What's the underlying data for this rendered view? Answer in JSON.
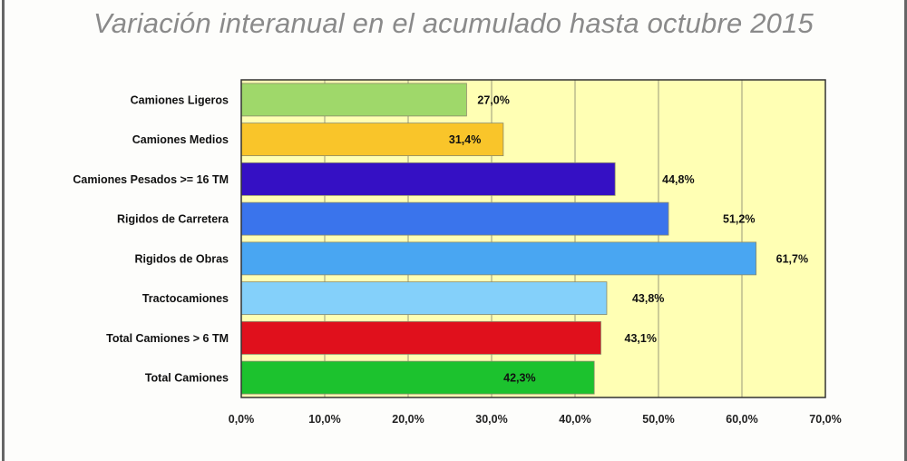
{
  "chart_data": {
    "type": "bar",
    "orientation": "horizontal",
    "title": "Variación interanual en el acumulado hasta octubre 2015",
    "categories": [
      "Camiones Ligeros",
      "Camiones Medios",
      "Camiones Pesados >= 16 TM",
      "Rigidos de Carretera",
      "Rigidos de Obras",
      "Tractocamiones",
      "Total Camiones  > 6 TM",
      "Total Camiones"
    ],
    "values": [
      27.0,
      31.4,
      44.8,
      51.2,
      61.7,
      43.8,
      43.1,
      42.3
    ],
    "value_labels": [
      "27,0%",
      "31,4%",
      "44,8%",
      "51,2%",
      "61,7%",
      "43,8%",
      "43,1%",
      "42,3%"
    ],
    "colors": [
      "#9fd86a",
      "#f9c52a",
      "#3510c4",
      "#3a74ec",
      "#49a6f2",
      "#84d0fa",
      "#e0101c",
      "#1cc22e"
    ],
    "xlim": [
      0,
      70
    ],
    "xticks": [
      "0,0%",
      "10,0%",
      "20,0%",
      "30,0%",
      "40,0%",
      "50,0%",
      "60,0%",
      "70,0%"
    ],
    "grid": true,
    "plot_background": "#ffffb4",
    "xlabel": "",
    "ylabel": ""
  }
}
